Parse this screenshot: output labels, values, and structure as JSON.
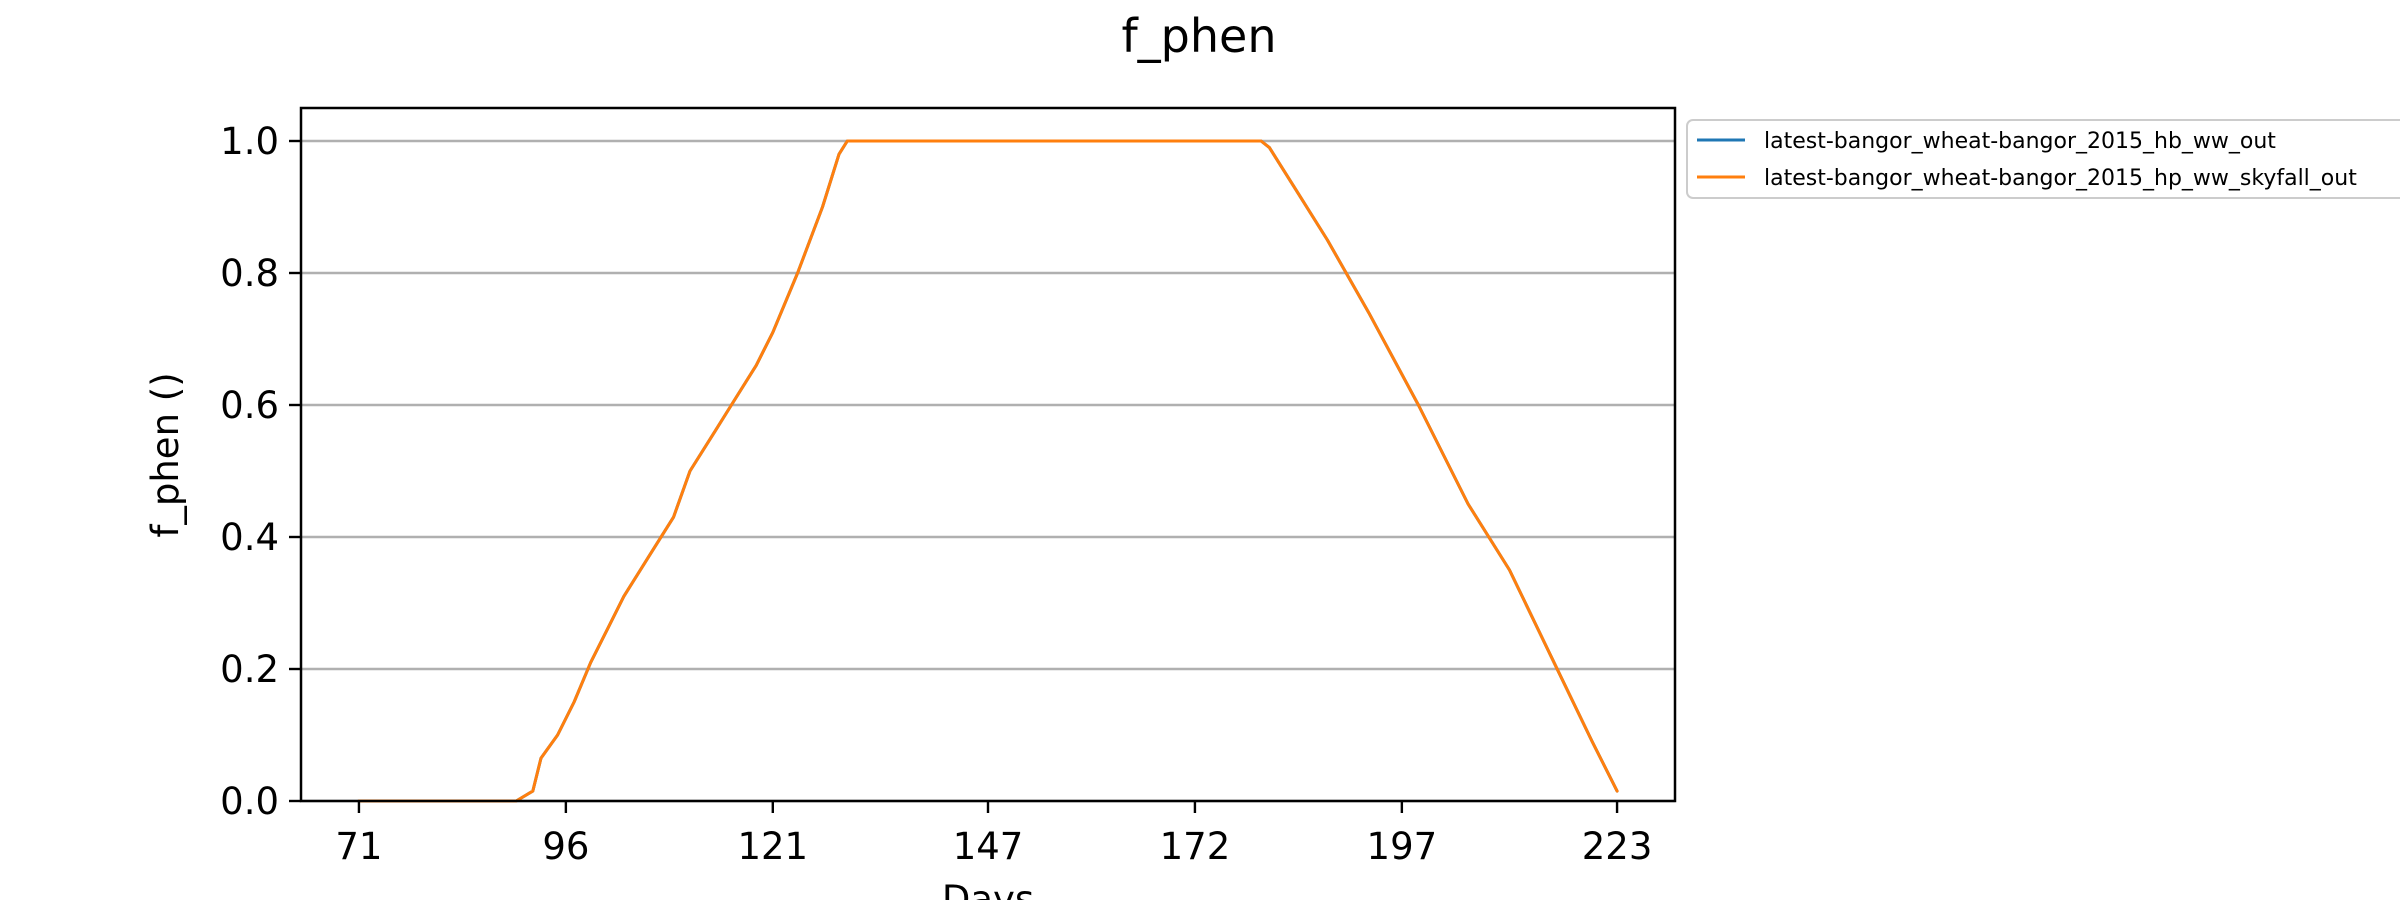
{
  "chart_data": {
    "type": "line",
    "title": "f_phen",
    "xlabel": "Days",
    "ylabel": "f_phen ()",
    "xlim": [
      64,
      230
    ],
    "ylim": [
      0.0,
      1.05
    ],
    "x_ticks": [
      71,
      96,
      121,
      147,
      172,
      197,
      223
    ],
    "x_tick_labels": [
      "71",
      "96",
      "121",
      "147",
      "172",
      "197",
      "223"
    ],
    "y_ticks": [
      0.0,
      0.2,
      0.4,
      0.6,
      0.8,
      1.0
    ],
    "y_tick_labels": [
      "0.0",
      "0.2",
      "0.4",
      "0.6",
      "0.8",
      "1.0"
    ],
    "grid": "horizontal",
    "legend_position": "outside-top-right",
    "series": [
      {
        "name": "latest-bangor_wheat-bangor_2015_hb_ww_out",
        "color": "#1f77b4",
        "x": [
          71,
          90,
          92,
          93,
          95,
          97,
          99,
          101,
          103,
          106,
          109,
          111,
          114,
          116,
          119,
          121,
          124,
          127,
          129,
          130,
          170,
          175,
          180,
          181,
          182,
          184,
          188,
          193,
          199,
          205,
          210,
          215,
          220,
          223
        ],
        "y": [
          0.0,
          0.0,
          0.015,
          0.065,
          0.1,
          0.15,
          0.21,
          0.26,
          0.31,
          0.37,
          0.43,
          0.5,
          0.56,
          0.6,
          0.66,
          0.71,
          0.8,
          0.9,
          0.98,
          1.0,
          1.0,
          1.0,
          1.0,
          0.99,
          0.97,
          0.93,
          0.85,
          0.74,
          0.6,
          0.45,
          0.35,
          0.22,
          0.09,
          0.015
        ]
      },
      {
        "name": "latest-bangor_wheat-bangor_2015_hp_ww_skyfall_out",
        "color": "#ff7f0e",
        "x": [
          71,
          90,
          92,
          93,
          95,
          97,
          99,
          101,
          103,
          106,
          109,
          111,
          114,
          116,
          119,
          121,
          124,
          127,
          129,
          130,
          170,
          175,
          180,
          181,
          182,
          184,
          188,
          193,
          199,
          205,
          210,
          215,
          220,
          223
        ],
        "y": [
          0.0,
          0.0,
          0.015,
          0.065,
          0.1,
          0.15,
          0.21,
          0.26,
          0.31,
          0.37,
          0.43,
          0.5,
          0.56,
          0.6,
          0.66,
          0.71,
          0.8,
          0.9,
          0.98,
          1.0,
          1.0,
          1.0,
          1.0,
          0.99,
          0.97,
          0.93,
          0.85,
          0.74,
          0.6,
          0.45,
          0.35,
          0.22,
          0.09,
          0.015
        ]
      }
    ]
  }
}
